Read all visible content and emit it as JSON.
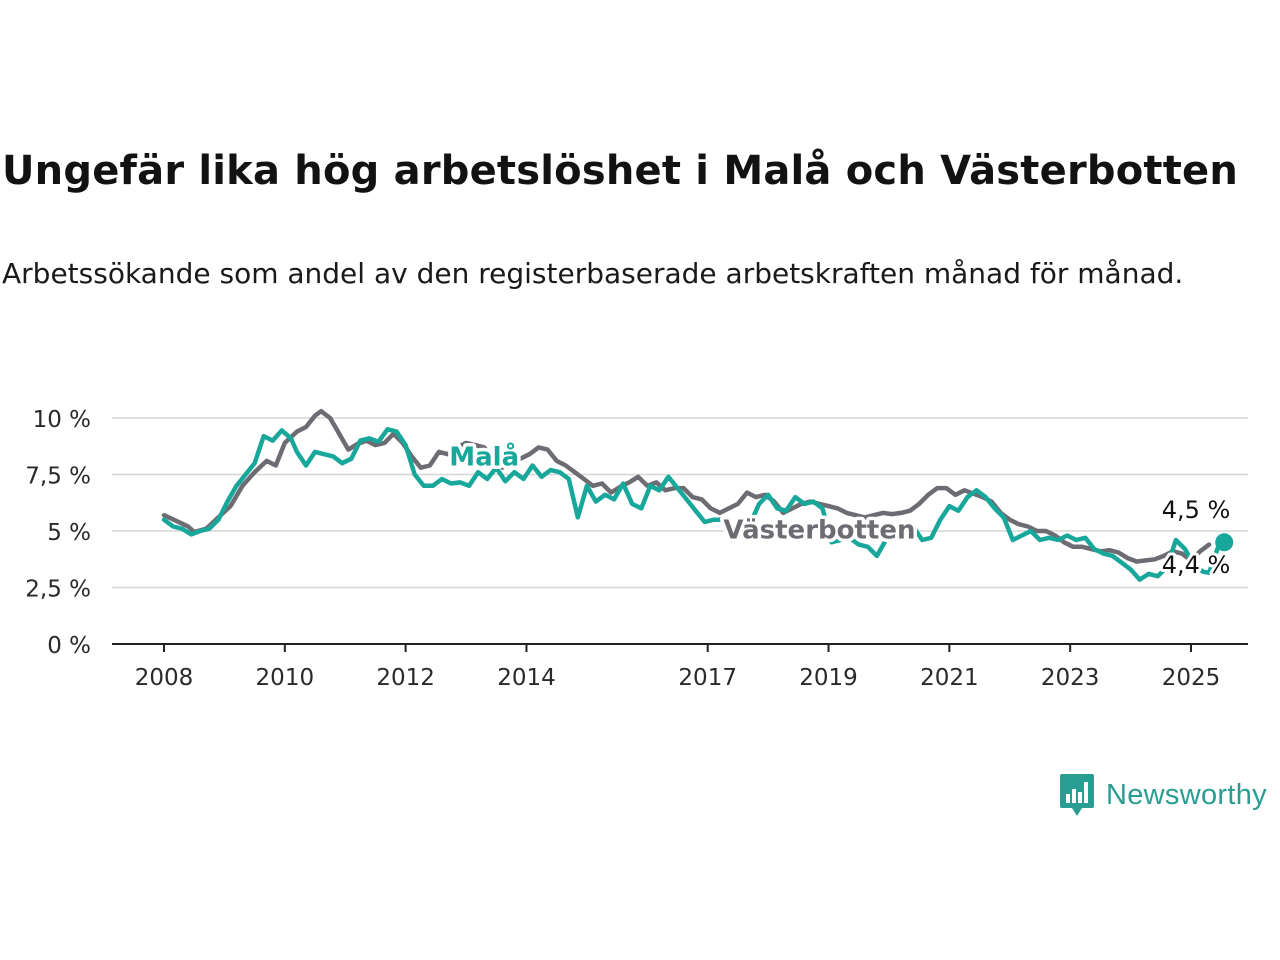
{
  "title": "Ungefär lika hög arbetslöshet i Malå och Västerbotten",
  "subtitle": "Arbetssökande som andel av den registerbaserade arbetskraften månad för månad.",
  "brand": {
    "name": "Newsworthy",
    "color": "#2a9d92"
  },
  "chart_data": {
    "type": "line",
    "xlim": [
      2008,
      2026
    ],
    "ylim": [
      0,
      10
    ],
    "yticks": [
      0,
      2.5,
      5,
      7.5,
      10
    ],
    "ytick_labels": [
      "0 %",
      "2,5 %",
      "5 %",
      "7,5 %",
      "10 %"
    ],
    "xticks": [
      2008,
      2010,
      2012,
      2014,
      2017,
      2019,
      2021,
      2023,
      2025
    ],
    "xtick_labels": [
      "2008",
      "2010",
      "2012",
      "2014",
      "2017",
      "2019",
      "2021",
      "2023",
      "2025"
    ],
    "grid": "horizontal",
    "series": [
      {
        "name": "Västerbotten",
        "color": "#6e6c73",
        "label_position": [
          2018.85,
          5.1
        ],
        "end_label": "4,4 %",
        "points": [
          [
            2008.0,
            5.7
          ],
          [
            2008.2,
            5.45
          ],
          [
            2008.4,
            5.2
          ],
          [
            2008.5,
            4.95
          ],
          [
            2008.7,
            5.1
          ],
          [
            2008.9,
            5.6
          ],
          [
            2009.1,
            6.1
          ],
          [
            2009.3,
            7.0
          ],
          [
            2009.5,
            7.6
          ],
          [
            2009.7,
            8.1
          ],
          [
            2009.85,
            7.9
          ],
          [
            2010.0,
            8.9
          ],
          [
            2010.2,
            9.4
          ],
          [
            2010.35,
            9.6
          ],
          [
            2010.5,
            10.1
          ],
          [
            2010.6,
            10.3
          ],
          [
            2010.75,
            10.0
          ],
          [
            2010.9,
            9.3
          ],
          [
            2011.05,
            8.6
          ],
          [
            2011.2,
            8.85
          ],
          [
            2011.35,
            9.0
          ],
          [
            2011.5,
            8.8
          ],
          [
            2011.65,
            8.9
          ],
          [
            2011.8,
            9.3
          ],
          [
            2011.95,
            8.9
          ],
          [
            2012.1,
            8.3
          ],
          [
            2012.25,
            7.8
          ],
          [
            2012.4,
            7.9
          ],
          [
            2012.55,
            8.5
          ],
          [
            2012.7,
            8.4
          ],
          [
            2012.85,
            8.7
          ],
          [
            2013.0,
            8.9
          ],
          [
            2013.15,
            8.8
          ],
          [
            2013.3,
            8.7
          ],
          [
            2013.45,
            8.2
          ],
          [
            2013.6,
            7.8
          ],
          [
            2013.75,
            8.3
          ],
          [
            2013.9,
            8.2
          ],
          [
            2014.05,
            8.4
          ],
          [
            2014.2,
            8.7
          ],
          [
            2014.35,
            8.6
          ],
          [
            2014.5,
            8.1
          ],
          [
            2014.65,
            7.9
          ],
          [
            2014.8,
            7.6
          ],
          [
            2014.95,
            7.3
          ],
          [
            2015.1,
            7.0
          ],
          [
            2015.25,
            7.1
          ],
          [
            2015.4,
            6.7
          ],
          [
            2015.55,
            6.95
          ],
          [
            2015.7,
            7.15
          ],
          [
            2015.85,
            7.4
          ],
          [
            2016.0,
            7.0
          ],
          [
            2016.15,
            7.15
          ],
          [
            2016.3,
            6.8
          ],
          [
            2016.45,
            6.9
          ],
          [
            2016.6,
            6.9
          ],
          [
            2016.75,
            6.5
          ],
          [
            2016.9,
            6.4
          ],
          [
            2017.05,
            6.0
          ],
          [
            2017.2,
            5.8
          ],
          [
            2017.35,
            6.0
          ],
          [
            2017.5,
            6.2
          ],
          [
            2017.65,
            6.7
          ],
          [
            2017.8,
            6.5
          ],
          [
            2017.95,
            6.6
          ],
          [
            2018.1,
            6.3
          ],
          [
            2018.25,
            5.8
          ],
          [
            2018.4,
            6.0
          ],
          [
            2018.55,
            6.2
          ],
          [
            2018.7,
            6.3
          ],
          [
            2018.85,
            6.2
          ],
          [
            2019.0,
            6.1
          ],
          [
            2019.15,
            6.0
          ],
          [
            2019.3,
            5.8
          ],
          [
            2019.45,
            5.7
          ],
          [
            2019.6,
            5.6
          ],
          [
            2019.75,
            5.7
          ],
          [
            2019.9,
            5.8
          ],
          [
            2020.05,
            5.75
          ],
          [
            2020.2,
            5.8
          ],
          [
            2020.35,
            5.9
          ],
          [
            2020.5,
            6.2
          ],
          [
            2020.65,
            6.6
          ],
          [
            2020.8,
            6.9
          ],
          [
            2020.95,
            6.9
          ],
          [
            2021.1,
            6.6
          ],
          [
            2021.25,
            6.8
          ],
          [
            2021.4,
            6.65
          ],
          [
            2021.55,
            6.5
          ],
          [
            2021.7,
            6.3
          ],
          [
            2021.85,
            5.8
          ],
          [
            2022.0,
            5.5
          ],
          [
            2022.15,
            5.3
          ],
          [
            2022.3,
            5.2
          ],
          [
            2022.45,
            5.0
          ],
          [
            2022.6,
            5.0
          ],
          [
            2022.75,
            4.8
          ],
          [
            2022.9,
            4.5
          ],
          [
            2023.05,
            4.3
          ],
          [
            2023.2,
            4.3
          ],
          [
            2023.35,
            4.2
          ],
          [
            2023.5,
            4.1
          ],
          [
            2023.65,
            4.15
          ],
          [
            2023.8,
            4.05
          ],
          [
            2023.95,
            3.8
          ],
          [
            2024.1,
            3.65
          ],
          [
            2024.25,
            3.7
          ],
          [
            2024.4,
            3.75
          ],
          [
            2024.55,
            3.9
          ],
          [
            2024.7,
            4.1
          ],
          [
            2024.85,
            4.0
          ],
          [
            2025.0,
            3.7
          ],
          [
            2025.15,
            4.1
          ],
          [
            2025.3,
            4.4
          ]
        ]
      },
      {
        "name": "Malå",
        "color": "#17a89b",
        "label_position": [
          2013.3,
          8.35
        ],
        "end_label": "4,5 %",
        "points": [
          [
            2008.0,
            5.5
          ],
          [
            2008.15,
            5.2
          ],
          [
            2008.3,
            5.1
          ],
          [
            2008.45,
            4.85
          ],
          [
            2008.6,
            5.0
          ],
          [
            2008.75,
            5.1
          ],
          [
            2008.9,
            5.5
          ],
          [
            2009.05,
            6.3
          ],
          [
            2009.2,
            7.0
          ],
          [
            2009.35,
            7.5
          ],
          [
            2009.5,
            8.0
          ],
          [
            2009.65,
            9.2
          ],
          [
            2009.8,
            9.0
          ],
          [
            2009.95,
            9.45
          ],
          [
            2010.1,
            9.1
          ],
          [
            2010.2,
            8.5
          ],
          [
            2010.35,
            7.9
          ],
          [
            2010.5,
            8.5
          ],
          [
            2010.65,
            8.4
          ],
          [
            2010.8,
            8.3
          ],
          [
            2010.95,
            8.0
          ],
          [
            2011.1,
            8.2
          ],
          [
            2011.25,
            9.0
          ],
          [
            2011.4,
            9.1
          ],
          [
            2011.55,
            8.95
          ],
          [
            2011.7,
            9.5
          ],
          [
            2011.85,
            9.4
          ],
          [
            2012.0,
            8.8
          ],
          [
            2012.15,
            7.5
          ],
          [
            2012.3,
            7.0
          ],
          [
            2012.45,
            7.0
          ],
          [
            2012.6,
            7.3
          ],
          [
            2012.75,
            7.1
          ],
          [
            2012.9,
            7.15
          ],
          [
            2013.05,
            7.0
          ],
          [
            2013.2,
            7.6
          ],
          [
            2013.35,
            7.3
          ],
          [
            2013.5,
            7.8
          ],
          [
            2013.65,
            7.2
          ],
          [
            2013.8,
            7.6
          ],
          [
            2013.95,
            7.3
          ],
          [
            2014.1,
            7.9
          ],
          [
            2014.25,
            7.4
          ],
          [
            2014.4,
            7.7
          ],
          [
            2014.55,
            7.6
          ],
          [
            2014.7,
            7.3
          ],
          [
            2014.85,
            5.6
          ],
          [
            2015.0,
            7.0
          ],
          [
            2015.15,
            6.3
          ],
          [
            2015.3,
            6.6
          ],
          [
            2015.45,
            6.4
          ],
          [
            2015.6,
            7.1
          ],
          [
            2015.75,
            6.2
          ],
          [
            2015.9,
            6.0
          ],
          [
            2016.05,
            7.0
          ],
          [
            2016.2,
            6.8
          ],
          [
            2016.35,
            7.4
          ],
          [
            2016.5,
            6.9
          ],
          [
            2016.65,
            6.4
          ],
          [
            2016.8,
            5.9
          ],
          [
            2016.95,
            5.4
          ],
          [
            2017.1,
            5.5
          ],
          [
            2017.25,
            5.5
          ],
          [
            2017.4,
            4.6
          ],
          [
            2017.55,
            5.2
          ],
          [
            2017.7,
            5.3
          ],
          [
            2017.85,
            6.2
          ],
          [
            2018.0,
            6.6
          ],
          [
            2018.15,
            6.0
          ],
          [
            2018.3,
            5.9
          ],
          [
            2018.45,
            6.5
          ],
          [
            2018.6,
            6.2
          ],
          [
            2018.75,
            6.3
          ],
          [
            2018.9,
            6.0
          ],
          [
            2019.05,
            4.5
          ],
          [
            2019.2,
            4.6
          ],
          [
            2019.35,
            4.7
          ],
          [
            2019.5,
            4.4
          ],
          [
            2019.65,
            4.3
          ],
          [
            2019.8,
            3.9
          ],
          [
            2019.95,
            4.6
          ],
          [
            2020.1,
            4.8
          ],
          [
            2020.25,
            5.0
          ],
          [
            2020.4,
            5.2
          ],
          [
            2020.55,
            4.6
          ],
          [
            2020.7,
            4.7
          ],
          [
            2020.85,
            5.5
          ],
          [
            2021.0,
            6.1
          ],
          [
            2021.15,
            5.9
          ],
          [
            2021.3,
            6.5
          ],
          [
            2021.45,
            6.8
          ],
          [
            2021.6,
            6.5
          ],
          [
            2021.75,
            6.0
          ],
          [
            2021.9,
            5.6
          ],
          [
            2022.05,
            4.6
          ],
          [
            2022.2,
            4.8
          ],
          [
            2022.35,
            5.0
          ],
          [
            2022.5,
            4.6
          ],
          [
            2022.65,
            4.7
          ],
          [
            2022.8,
            4.6
          ],
          [
            2022.95,
            4.8
          ],
          [
            2023.1,
            4.6
          ],
          [
            2023.25,
            4.7
          ],
          [
            2023.4,
            4.2
          ],
          [
            2023.55,
            4.0
          ],
          [
            2023.7,
            3.9
          ],
          [
            2023.85,
            3.6
          ],
          [
            2024.0,
            3.3
          ],
          [
            2024.15,
            2.85
          ],
          [
            2024.3,
            3.1
          ],
          [
            2024.45,
            3.0
          ],
          [
            2024.6,
            3.4
          ],
          [
            2024.75,
            4.6
          ],
          [
            2024.9,
            4.2
          ],
          [
            2025.05,
            3.5
          ],
          [
            2025.2,
            3.2
          ],
          [
            2025.3,
            3.15
          ],
          [
            2025.45,
            4.3
          ],
          [
            2025.55,
            4.5
          ]
        ]
      }
    ]
  }
}
